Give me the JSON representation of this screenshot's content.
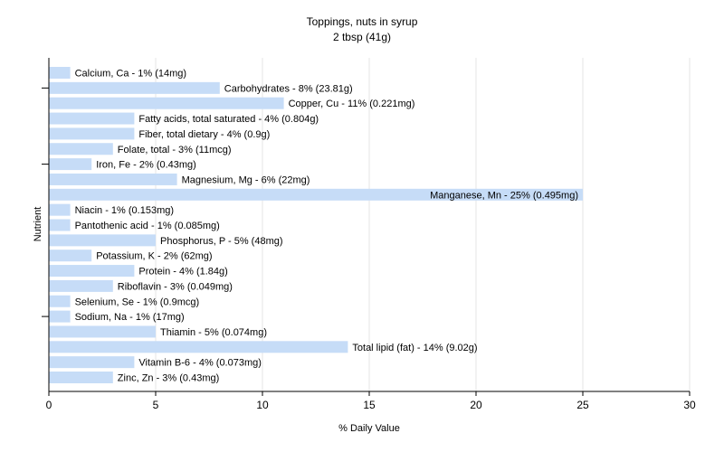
{
  "chart_data": {
    "type": "bar",
    "orientation": "horizontal",
    "title": "Toppings, nuts in syrup",
    "subtitle": "2 tbsp (41g)",
    "xlabel": "% Daily Value",
    "ylabel": "Nutrient",
    "xlim": [
      0,
      30
    ],
    "xticks": [
      0,
      5,
      10,
      15,
      20,
      25,
      30
    ],
    "grid": true,
    "bar_color": "#c6dcf7",
    "categories": [
      "Calcium, Ca",
      "Carbohydrates",
      "Copper, Cu",
      "Fatty acids, total saturated",
      "Fiber, total dietary",
      "Folate, total",
      "Iron, Fe",
      "Magnesium, Mg",
      "Manganese, Mn",
      "Niacin",
      "Pantothenic acid",
      "Phosphorus, P",
      "Potassium, K",
      "Protein",
      "Riboflavin",
      "Selenium, Se",
      "Sodium, Na",
      "Thiamin",
      "Total lipid (fat)",
      "Vitamin B-6",
      "Zinc, Zn"
    ],
    "values": [
      1,
      8,
      11,
      4,
      4,
      3,
      2,
      6,
      25,
      1,
      1,
      5,
      2,
      4,
      3,
      1,
      1,
      5,
      14,
      4,
      3
    ],
    "labels": [
      "Calcium, Ca - 1% (14mg)",
      "Carbohydrates - 8% (23.81g)",
      "Copper, Cu - 11% (0.221mg)",
      "Fatty acids, total saturated - 4% (0.804g)",
      "Fiber, total dietary - 4% (0.9g)",
      "Folate, total - 3% (11mcg)",
      "Iron, Fe - 2% (0.43mg)",
      "Magnesium, Mg - 6% (22mg)",
      "Manganese, Mn - 25% (0.495mg)",
      "Niacin - 1% (0.153mg)",
      "Pantothenic acid - 1% (0.085mg)",
      "Phosphorus, P - 5% (48mg)",
      "Potassium, K - 2% (62mg)",
      "Protein - 4% (1.84g)",
      "Riboflavin - 3% (0.049mg)",
      "Selenium, Se - 1% (0.9mcg)",
      "Sodium, Na - 1% (17mg)",
      "Thiamin - 5% (0.074mg)",
      "Total lipid (fat) - 14% (9.02g)",
      "Vitamin B-6 - 4% (0.073mg)",
      "Zinc, Zn - 3% (0.43mg)"
    ]
  }
}
